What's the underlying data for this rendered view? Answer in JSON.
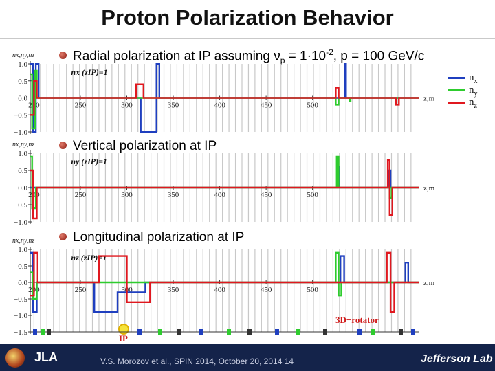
{
  "page": {
    "title": "Proton Polarization Behavior",
    "footer": "V.S. Morozov et al., SPIN 2014, October 20, 2014 14",
    "logo_right": "Jefferson Lab",
    "logo_left_text": "JLA"
  },
  "colors": {
    "nx": "#1f3fbf",
    "ny": "#2ecc2e",
    "nz": "#e0181f"
  },
  "panels": [
    {
      "bullet": "Radial polarization at IP assuming ν",
      "bullet_sub": "p",
      "bullet_tail": " = 1·10",
      "bullet_sup": "-2",
      "bullet_end": ", p = 100 GeV/c",
      "ylabel": "nx,ny,nz",
      "inset": "nx (zIP)=1"
    },
    {
      "bullet": "Vertical polarization at IP",
      "ylabel": "nx,ny,nz",
      "inset": "ny (zIP)=1"
    },
    {
      "bullet": "Longitudinal polarization at IP",
      "ylabel": "nx,ny,nz",
      "inset": "nz (zIP)=1"
    }
  ],
  "annotations": {
    "rotator": "3D−rotator",
    "ip": "IP"
  },
  "legend": [
    {
      "key": "nx",
      "label": "n",
      "sub": "x"
    },
    {
      "key": "ny",
      "label": "n",
      "sub": "y"
    },
    {
      "key": "nz",
      "label": "n",
      "sub": "z"
    }
  ],
  "chart_data": [
    {
      "type": "line",
      "title": "Radial polarization at IP",
      "xlabel": "z,m",
      "ylabel": "nx,ny,nz",
      "xlim": [
        196,
        615
      ],
      "ylim": [
        -1.0,
        1.0
      ],
      "xticks": [
        200,
        250,
        300,
        350,
        400,
        450,
        500
      ],
      "yticks": [
        -1.0,
        -0.5,
        0.0,
        0.5,
        1.0
      ],
      "ytick_labels": [
        "−1.0",
        "−0.5",
        "0.0",
        "0.5",
        "1.0"
      ],
      "grid": true,
      "series": [
        {
          "name": "nx",
          "points": [
            [
              196,
              1
            ],
            [
              199,
              1
            ],
            [
              199,
              -1
            ],
            [
              202,
              -1
            ],
            [
              202,
              1
            ],
            [
              205,
              1
            ],
            [
              205,
              0
            ],
            [
              315,
              0
            ],
            [
              315,
              -1
            ],
            [
              332,
              -1
            ],
            [
              332,
              1
            ],
            [
              335,
              1
            ],
            [
              335,
              0
            ],
            [
              535,
              0
            ],
            [
              535,
              1
            ],
            [
              536,
              1
            ],
            [
              536,
              0
            ],
            [
              615,
              0
            ]
          ]
        },
        {
          "name": "ny",
          "points": [
            [
              196,
              0.7
            ],
            [
              198,
              0.7
            ],
            [
              198,
              -0.9
            ],
            [
              201,
              -0.9
            ],
            [
              201,
              0.8
            ],
            [
              203,
              0.8
            ],
            [
              203,
              0
            ],
            [
              525,
              0
            ],
            [
              525,
              -0.2
            ],
            [
              528,
              -0.2
            ],
            [
              528,
              0
            ],
            [
              540,
              0
            ],
            [
              540,
              -0.1
            ],
            [
              541,
              -0.1
            ],
            [
              541,
              0
            ],
            [
              615,
              0
            ]
          ]
        },
        {
          "name": "nz",
          "points": [
            [
              196,
              -0.5
            ],
            [
              200,
              -0.5
            ],
            [
              200,
              0.5
            ],
            [
              203,
              0.5
            ],
            [
              203,
              0
            ],
            [
              310,
              0
            ],
            [
              310,
              0.4
            ],
            [
              318,
              0.4
            ],
            [
              318,
              0
            ],
            [
              525,
              0
            ],
            [
              525,
              0.3
            ],
            [
              528,
              0.3
            ],
            [
              528,
              0
            ],
            [
              590,
              0
            ],
            [
              590,
              -0.2
            ],
            [
              593,
              -0.2
            ],
            [
              593,
              0
            ],
            [
              615,
              0
            ]
          ]
        }
      ]
    },
    {
      "type": "line",
      "title": "Vertical polarization at IP",
      "xlabel": "z,m",
      "ylabel": "nx,ny,nz",
      "xlim": [
        196,
        615
      ],
      "ylim": [
        -1.0,
        1.0
      ],
      "xticks": [
        200,
        250,
        300,
        350,
        400,
        450,
        500
      ],
      "yticks": [
        -1.0,
        -0.5,
        0.0,
        0.5,
        1.0
      ],
      "ytick_labels": [
        "−1.0",
        "−0.5",
        "0.0",
        "0.5",
        "1.0"
      ],
      "grid": true,
      "series": [
        {
          "name": "nx",
          "points": [
            [
              196,
              0
            ],
            [
              527,
              0
            ],
            [
              527,
              0.6
            ],
            [
              529,
              0.6
            ],
            [
              529,
              0
            ],
            [
              582,
              0
            ],
            [
              582,
              0.5
            ],
            [
              584,
              0.5
            ],
            [
              584,
              0
            ],
            [
              615,
              0
            ]
          ]
        },
        {
          "name": "ny",
          "points": [
            [
              196,
              0.9
            ],
            [
              198,
              0.9
            ],
            [
              198,
              -0.6
            ],
            [
              202,
              -0.6
            ],
            [
              202,
              0
            ],
            [
              526,
              0
            ],
            [
              526,
              0.9
            ],
            [
              528,
              0.9
            ],
            [
              528,
              0
            ],
            [
              583,
              0
            ],
            [
              583,
              -0.3
            ],
            [
              585,
              -0.3
            ],
            [
              585,
              0
            ],
            [
              615,
              0
            ]
          ]
        },
        {
          "name": "nz",
          "points": [
            [
              196,
              0.5
            ],
            [
              199,
              0.5
            ],
            [
              199,
              -0.9
            ],
            [
              203,
              -0.9
            ],
            [
              203,
              0
            ],
            [
              581,
              0
            ],
            [
              581,
              0.8
            ],
            [
              583,
              0.8
            ],
            [
              583,
              -0.8
            ],
            [
              586,
              -0.8
            ],
            [
              586,
              0
            ],
            [
              615,
              0
            ]
          ]
        }
      ]
    },
    {
      "type": "line",
      "title": "Longitudinal polarization at IP",
      "xlabel": "z,m",
      "ylabel": "nx,ny,nz",
      "xlim": [
        196,
        615
      ],
      "ylim": [
        -1.5,
        1.0
      ],
      "xticks": [
        200,
        250,
        300,
        350,
        400,
        450,
        500
      ],
      "yticks": [
        -1.5,
        -1.0,
        -0.5,
        0.0,
        0.5,
        1.0
      ],
      "ytick_labels": [
        "−1.5",
        "−1.0",
        "−0.5",
        "0.0",
        "0.5",
        "1.0"
      ],
      "grid": true,
      "series": [
        {
          "name": "nx",
          "points": [
            [
              196,
              0.9
            ],
            [
              199,
              0.9
            ],
            [
              199,
              -0.9
            ],
            [
              203,
              -0.9
            ],
            [
              203,
              0
            ],
            [
              265,
              0
            ],
            [
              265,
              -0.9
            ],
            [
              290,
              -0.9
            ],
            [
              290,
              -0.3
            ],
            [
              320,
              -0.3
            ],
            [
              320,
              0
            ],
            [
              530,
              0
            ],
            [
              530,
              0.8
            ],
            [
              534,
              0.8
            ],
            [
              534,
              0
            ],
            [
              600,
              0
            ],
            [
              600,
              0.6
            ],
            [
              603,
              0.6
            ],
            [
              603,
              0
            ],
            [
              615,
              0
            ]
          ]
        },
        {
          "name": "ny",
          "points": [
            [
              196,
              0.3
            ],
            [
              199,
              0.3
            ],
            [
              199,
              -0.5
            ],
            [
              203,
              -0.5
            ],
            [
              203,
              0
            ],
            [
              525,
              0
            ],
            [
              525,
              0.9
            ],
            [
              528,
              0.9
            ],
            [
              528,
              -0.4
            ],
            [
              531,
              -0.4
            ],
            [
              531,
              0
            ],
            [
              615,
              0
            ]
          ]
        },
        {
          "name": "nz",
          "points": [
            [
              196,
              -0.4
            ],
            [
              200,
              -0.4
            ],
            [
              200,
              0.9
            ],
            [
              204,
              0.9
            ],
            [
              204,
              0
            ],
            [
              270,
              0
            ],
            [
              270,
              0.8
            ],
            [
              300,
              0.8
            ],
            [
              300,
              -0.6
            ],
            [
              325,
              -0.6
            ],
            [
              325,
              0
            ],
            [
              580,
              0
            ],
            [
              580,
              0.9
            ],
            [
              584,
              0.9
            ],
            [
              584,
              -0.9
            ],
            [
              588,
              -0.9
            ],
            [
              588,
              0
            ],
            [
              615,
              0
            ]
          ]
        }
      ]
    }
  ]
}
